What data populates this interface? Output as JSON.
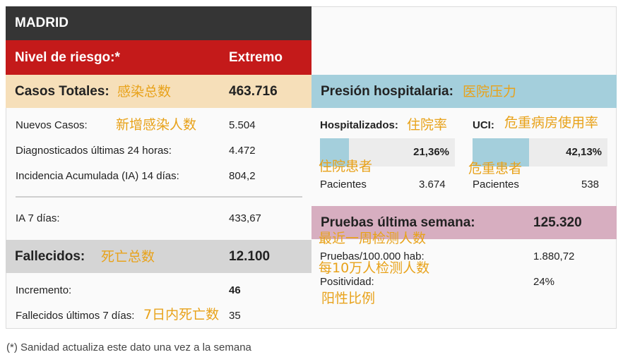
{
  "region": "MADRID",
  "risk": {
    "label": "Nivel de riesgo:*",
    "value": "Extremo"
  },
  "casos": {
    "label": "Casos Totales:",
    "label_cn": "感染总数",
    "value": "463.716",
    "rows": [
      {
        "label": "Nuevos Casos:",
        "label_cn": "新增感染人数",
        "value": "5.504"
      },
      {
        "label": "Diagnosticados últimas 24 horas:",
        "value": "4.472"
      },
      {
        "label": "Incidencia Acumulada (IA) 14 días:",
        "value": "804,2"
      }
    ],
    "ia7": {
      "label": "IA 7 días:",
      "value": "433,67"
    }
  },
  "fallecidos": {
    "label": "Fallecidos:",
    "label_cn": "死亡总数",
    "value": "12.100",
    "incremento": {
      "label": "Incremento:",
      "value": "46"
    },
    "ultimos7": {
      "label": "Fallecidos últimos 7 días:",
      "label_cn": "7日内死亡数",
      "value": "35"
    }
  },
  "presion": {
    "label": "Presión hospitalaria:",
    "label_cn": "医院压力",
    "hospitalizados": {
      "label": "Hospitalizados:",
      "label_cn": "住院率",
      "percent": "21,36%",
      "fraction": 0.2136,
      "sub_cn": "住院患者",
      "pacientes_label": "Pacientes",
      "pacientes": "3.674"
    },
    "uci": {
      "label": "UCI:",
      "label_cn": "危重病房使用率",
      "percent": "42,13%",
      "fraction": 0.4213,
      "sub_cn": "危重患者",
      "pacientes_label": "Pacientes",
      "pacientes": "538"
    }
  },
  "pruebas": {
    "label": "Pruebas última semana:",
    "label_cn": "最近一周检测人数",
    "value": "125.320",
    "per100k": {
      "label": "Pruebas/100.000 hab:",
      "label_cn": "每10万人检测人数",
      "value": "1.880,72"
    },
    "positividad": {
      "label": "Positividad:",
      "label_cn": "阳性比例",
      "value": "24%"
    }
  },
  "footnote": "(*) Sanidad actualiza este dato una vez a la semana",
  "colors": {
    "header_dark": "#353535",
    "risk_red": "#c41a1a",
    "casos_bg": "#f6dfb9",
    "presion_bg": "#a4cfdc",
    "pruebas_bg": "#d7aec0",
    "fallecidos_bg": "#d5d5d5",
    "annotation": "#e8a21a"
  }
}
